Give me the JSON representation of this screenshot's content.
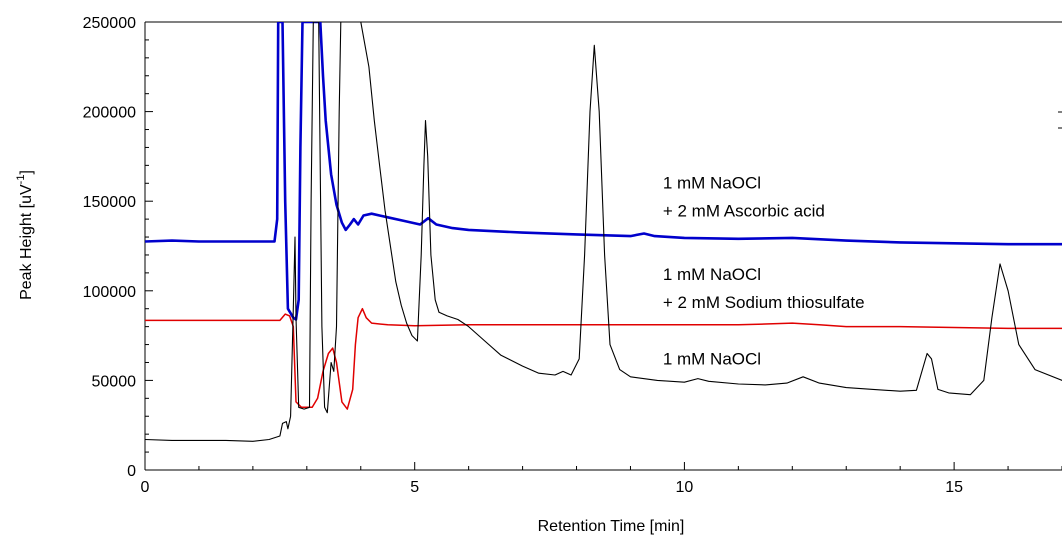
{
  "chart_data": {
    "type": "line",
    "title": "",
    "xlabel": "Retention Time [min]",
    "ylabel": "Peak Height [uV",
    "ylabel_sup": "-1",
    "ylabel_end": "]",
    "xlim": [
      0,
      17
    ],
    "ylim": [
      0,
      250000
    ],
    "x_ticks": [
      0,
      5,
      10,
      15
    ],
    "x_tick_labels": [
      "0",
      "5",
      "10",
      "15"
    ],
    "y_ticks": [
      0,
      50000,
      100000,
      150000,
      200000,
      250000
    ],
    "y_tick_labels": [
      "0",
      "50000",
      "100000",
      "150000",
      "200000",
      "250000"
    ],
    "grid": false,
    "annotations": [
      {
        "lines": [
          "1 mM NaOCl",
          "+ 2 mM Ascorbic acid"
        ],
        "x": 9.6,
        "y": 157000
      },
      {
        "lines": [
          "1 mM NaOCl",
          "+ 2 mM Sodium thiosulfate"
        ],
        "x": 9.6,
        "y": 106000
      },
      {
        "lines": [
          "1 mM NaOCl"
        ],
        "x": 9.6,
        "y": 59000
      }
    ],
    "series": [
      {
        "color": "#0000cc",
        "stroke_width": 2.6,
        "points": [
          [
            0,
            127500
          ],
          [
            0.5,
            128000
          ],
          [
            1,
            127500
          ],
          [
            1.5,
            127500
          ],
          [
            2,
            127500
          ],
          [
            2.4,
            127500
          ],
          [
            2.45,
            140000
          ],
          [
            2.47,
            250000
          ],
          [
            2.55,
            250000
          ],
          [
            2.6,
            150000
          ],
          [
            2.65,
            90000
          ],
          [
            2.75,
            85000
          ],
          [
            2.8,
            84000
          ],
          [
            2.85,
            95000
          ],
          [
            2.88,
            180000
          ],
          [
            2.92,
            250000
          ],
          [
            3.25,
            250000
          ],
          [
            3.3,
            220000
          ],
          [
            3.35,
            195000
          ],
          [
            3.45,
            165000
          ],
          [
            3.55,
            148000
          ],
          [
            3.65,
            138000
          ],
          [
            3.72,
            134000
          ],
          [
            3.8,
            137000
          ],
          [
            3.87,
            140000
          ],
          [
            3.95,
            137000
          ],
          [
            4.05,
            142000
          ],
          [
            4.2,
            143000
          ],
          [
            4.5,
            141000
          ],
          [
            4.8,
            139000
          ],
          [
            5.1,
            137000
          ],
          [
            5.25,
            140500
          ],
          [
            5.4,
            137000
          ],
          [
            5.7,
            135000
          ],
          [
            6,
            134000
          ],
          [
            7,
            132500
          ],
          [
            8,
            131500
          ],
          [
            9,
            130500
          ],
          [
            9.25,
            132000
          ],
          [
            9.45,
            130500
          ],
          [
            10,
            129500
          ],
          [
            11,
            129000
          ],
          [
            12,
            129500
          ],
          [
            13,
            128000
          ],
          [
            14,
            127000
          ],
          [
            15,
            126500
          ],
          [
            16,
            126000
          ],
          [
            17,
            126000
          ]
        ]
      },
      {
        "color": "#e00000",
        "stroke_width": 1.5,
        "points": [
          [
            0,
            83500
          ],
          [
            1,
            83500
          ],
          [
            2,
            83500
          ],
          [
            2.5,
            83500
          ],
          [
            2.6,
            87000
          ],
          [
            2.68,
            86000
          ],
          [
            2.75,
            80000
          ],
          [
            2.8,
            38000
          ],
          [
            2.9,
            35000
          ],
          [
            3.1,
            35000
          ],
          [
            3.2,
            40000
          ],
          [
            3.3,
            55000
          ],
          [
            3.4,
            65000
          ],
          [
            3.48,
            68000
          ],
          [
            3.55,
            60000
          ],
          [
            3.65,
            38000
          ],
          [
            3.75,
            34000
          ],
          [
            3.85,
            45000
          ],
          [
            3.9,
            70000
          ],
          [
            3.95,
            85000
          ],
          [
            4.03,
            90000
          ],
          [
            4.1,
            85000
          ],
          [
            4.2,
            82000
          ],
          [
            4.5,
            81000
          ],
          [
            5,
            80500
          ],
          [
            6,
            81000
          ],
          [
            7,
            81000
          ],
          [
            8,
            81000
          ],
          [
            9,
            81000
          ],
          [
            10,
            81000
          ],
          [
            11,
            81000
          ],
          [
            11.5,
            81500
          ],
          [
            12,
            82000
          ],
          [
            12.5,
            81000
          ],
          [
            13,
            80000
          ],
          [
            14,
            80000
          ],
          [
            15,
            79500
          ],
          [
            16,
            79000
          ],
          [
            17,
            79000
          ]
        ]
      },
      {
        "color": "#000000",
        "stroke_width": 1.1,
        "points": [
          [
            0,
            17000
          ],
          [
            0.5,
            16500
          ],
          [
            1,
            16500
          ],
          [
            1.5,
            16500
          ],
          [
            2,
            16000
          ],
          [
            2.3,
            17000
          ],
          [
            2.5,
            19000
          ],
          [
            2.55,
            26000
          ],
          [
            2.62,
            27000
          ],
          [
            2.65,
            23000
          ],
          [
            2.7,
            30000
          ],
          [
            2.75,
            90000
          ],
          [
            2.78,
            130000
          ],
          [
            2.8,
            85000
          ],
          [
            2.85,
            35000
          ],
          [
            2.95,
            34000
          ],
          [
            3.05,
            35000
          ],
          [
            3.08,
            150000
          ],
          [
            3.12,
            250000
          ],
          [
            3.22,
            250000
          ],
          [
            3.28,
            80000
          ],
          [
            3.33,
            35000
          ],
          [
            3.38,
            32000
          ],
          [
            3.45,
            60000
          ],
          [
            3.5,
            55000
          ],
          [
            3.55,
            80000
          ],
          [
            3.6,
            200000
          ],
          [
            3.63,
            250000
          ],
          [
            4.0,
            250000
          ],
          [
            4.15,
            225000
          ],
          [
            4.25,
            195000
          ],
          [
            4.35,
            170000
          ],
          [
            4.45,
            145000
          ],
          [
            4.55,
            125000
          ],
          [
            4.65,
            105000
          ],
          [
            4.75,
            92000
          ],
          [
            4.85,
            82000
          ],
          [
            4.95,
            75000
          ],
          [
            5.05,
            72000
          ],
          [
            5.12,
            120000
          ],
          [
            5.17,
            170000
          ],
          [
            5.2,
            195000
          ],
          [
            5.24,
            175000
          ],
          [
            5.3,
            120000
          ],
          [
            5.38,
            95000
          ],
          [
            5.45,
            88000
          ],
          [
            5.6,
            86000
          ],
          [
            5.8,
            84000
          ],
          [
            6,
            80000
          ],
          [
            6.3,
            72000
          ],
          [
            6.6,
            64000
          ],
          [
            7,
            58000
          ],
          [
            7.3,
            54000
          ],
          [
            7.6,
            53000
          ],
          [
            7.75,
            55000
          ],
          [
            7.9,
            53000
          ],
          [
            8.05,
            62000
          ],
          [
            8.15,
            120000
          ],
          [
            8.25,
            200000
          ],
          [
            8.33,
            237000
          ],
          [
            8.42,
            200000
          ],
          [
            8.52,
            120000
          ],
          [
            8.62,
            70000
          ],
          [
            8.8,
            56000
          ],
          [
            9,
            52000
          ],
          [
            9.5,
            50000
          ],
          [
            10,
            49000
          ],
          [
            10.25,
            51000
          ],
          [
            10.45,
            49500
          ],
          [
            11,
            48000
          ],
          [
            11.5,
            47500
          ],
          [
            11.9,
            48500
          ],
          [
            12.2,
            52000
          ],
          [
            12.5,
            48500
          ],
          [
            13,
            46000
          ],
          [
            13.5,
            45000
          ],
          [
            14,
            44000
          ],
          [
            14.3,
            44500
          ],
          [
            14.5,
            65000
          ],
          [
            14.58,
            62000
          ],
          [
            14.7,
            45000
          ],
          [
            14.9,
            43000
          ],
          [
            15.3,
            42000
          ],
          [
            15.55,
            50000
          ],
          [
            15.7,
            85000
          ],
          [
            15.85,
            115000
          ],
          [
            16,
            100000
          ],
          [
            16.2,
            70000
          ],
          [
            16.5,
            56000
          ],
          [
            17,
            50000
          ]
        ]
      }
    ]
  }
}
